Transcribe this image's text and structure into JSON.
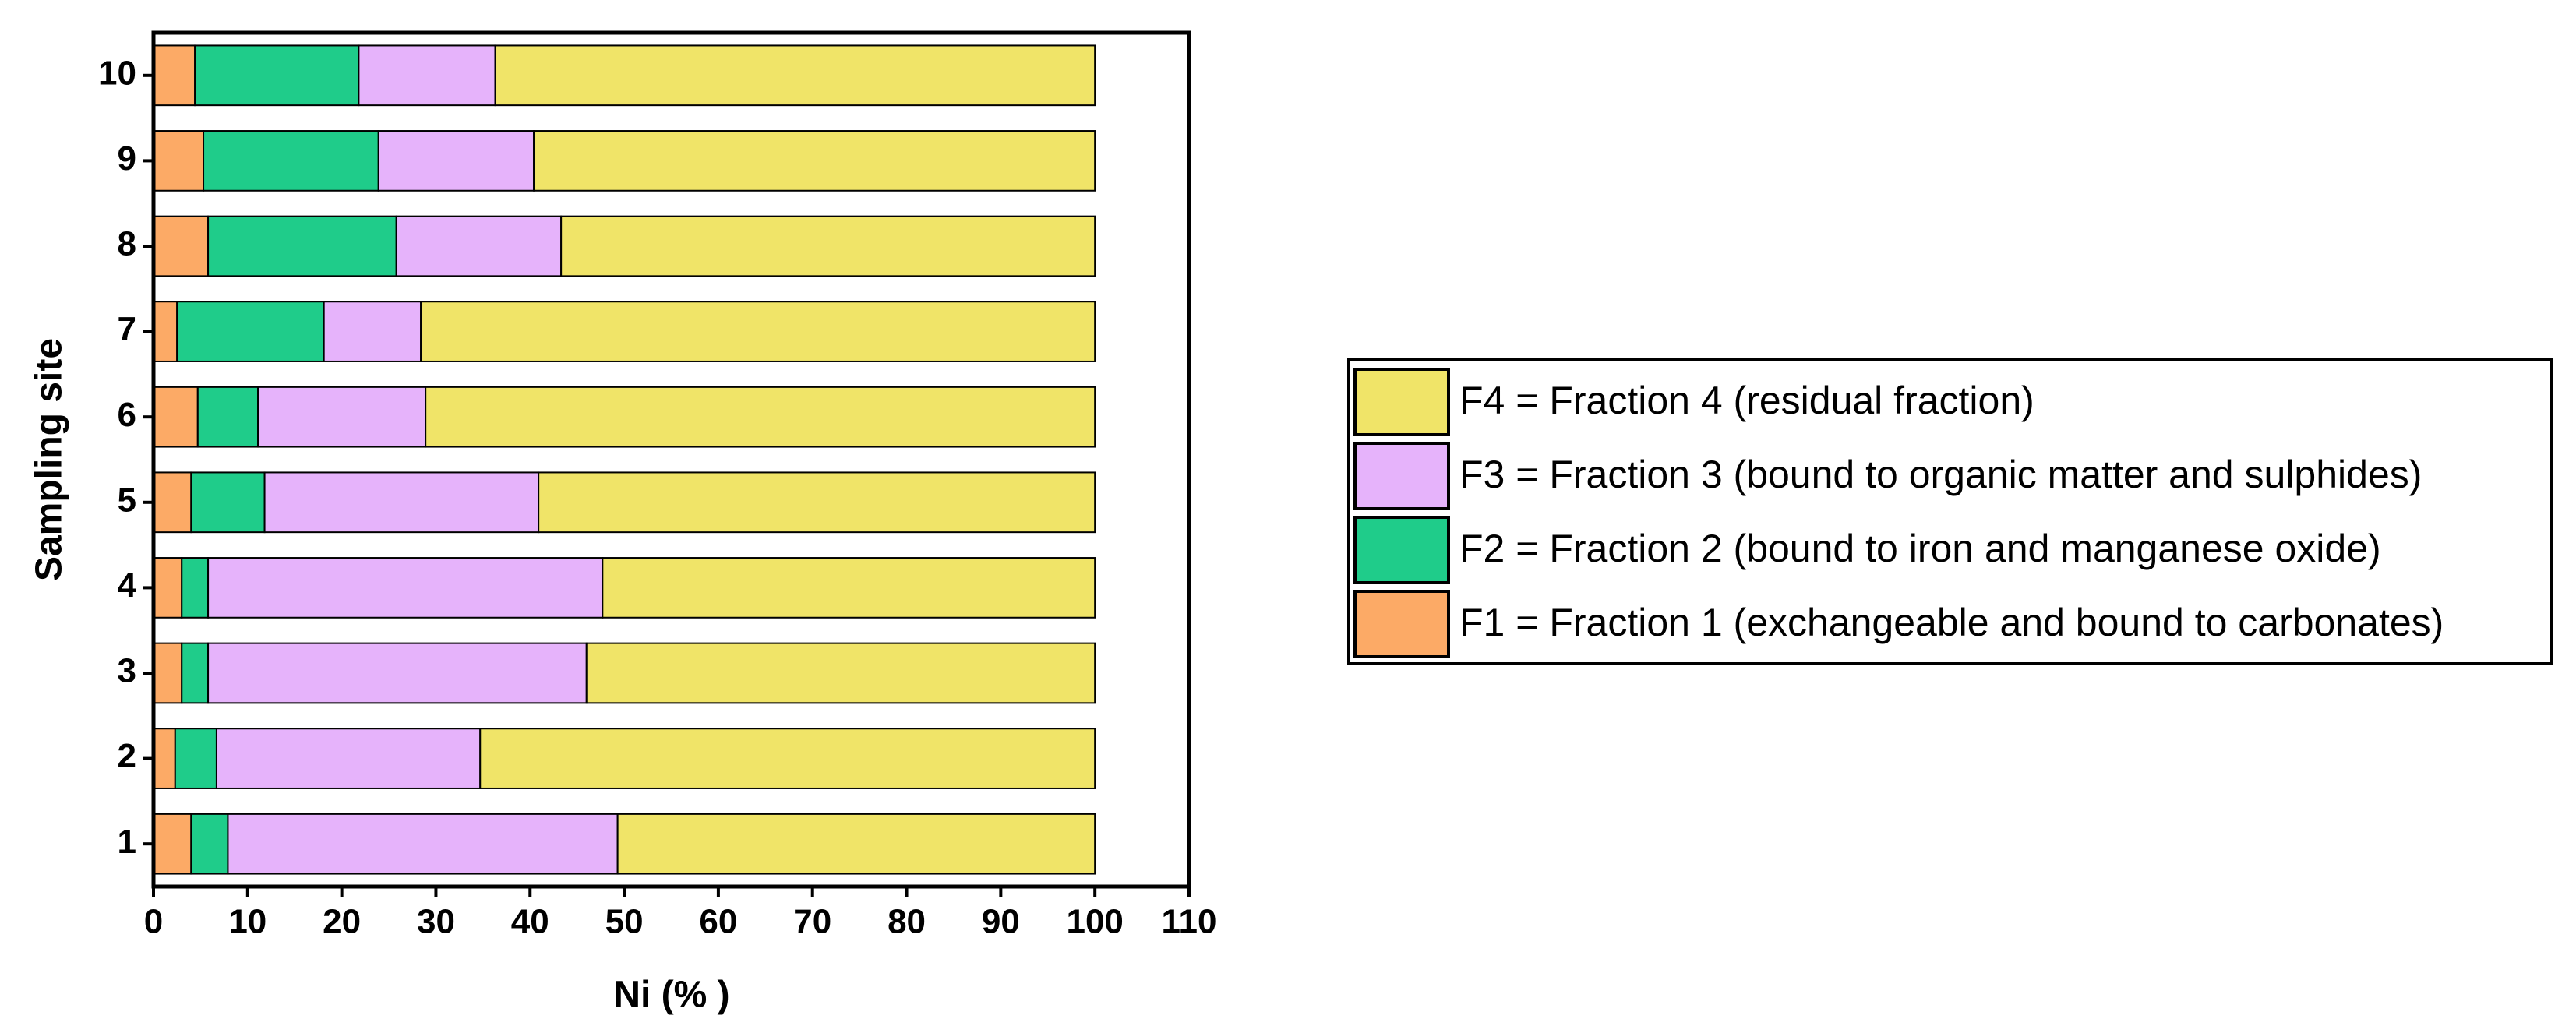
{
  "chart_data": {
    "type": "stacked-barh",
    "xlabel": "Ni  (% )",
    "ylabel": "Sampling site",
    "categories": [
      "1",
      "2",
      "3",
      "4",
      "5",
      "6",
      "7",
      "8",
      "9",
      "10"
    ],
    "series": [
      {
        "name": "F1 = Fraction 1 (exchangeable and bound to carbonates)",
        "color": "#fcaa66",
        "values": [
          4.0,
          2.3,
          3.0,
          3.0,
          4.0,
          4.7,
          2.5,
          5.8,
          5.3,
          4.4
        ]
      },
      {
        "name": "F2 = Fraction 2 (bound to iron and manganese oxide)",
        "color": "#1fcc8a",
        "values": [
          3.9,
          4.4,
          2.8,
          2.8,
          7.8,
          6.4,
          15.6,
          20.0,
          18.6,
          17.4
        ]
      },
      {
        "name": "F3 = Fraction 3 (bound to organic matter and sulphides)",
        "color": "#e6b3fb",
        "values": [
          41.4,
          28.0,
          40.2,
          41.9,
          29.1,
          17.8,
          10.3,
          17.5,
          16.5,
          14.5
        ]
      },
      {
        "name": "F4 = Fraction 4 (residual fraction)",
        "color": "#f0e468",
        "values": [
          50.7,
          65.3,
          54.0,
          52.3,
          59.1,
          71.1,
          71.6,
          56.7,
          59.6,
          63.7
        ]
      }
    ],
    "xlim": [
      0,
      110
    ],
    "xticks": [
      0,
      10,
      20,
      30,
      40,
      50,
      60,
      70,
      80,
      90,
      100,
      110
    ]
  }
}
